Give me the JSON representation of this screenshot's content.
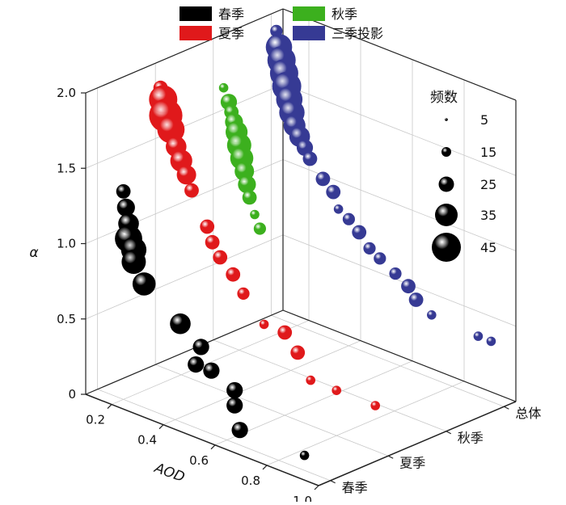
{
  "chart_data": {
    "type": "scatter",
    "y_axis": {
      "label": "α",
      "ticks": [
        "0",
        "0.5",
        "1.0",
        "1.5",
        "2.0"
      ],
      "range": [
        0,
        2.0
      ]
    },
    "x_axis": {
      "label": "AOD",
      "ticks": [
        "0.2",
        "0.4",
        "0.6",
        "0.8",
        "1.0"
      ],
      "range": [
        0.1,
        1.0
      ]
    },
    "z_axis": {
      "label": "",
      "ticks": [
        "春季",
        "夏季",
        "秋季",
        "总体"
      ]
    },
    "legend": {
      "placement": "top",
      "items": [
        {
          "label": "春季",
          "color": "#000000"
        },
        {
          "label": "夏季",
          "color": "#e0191b"
        },
        {
          "label": "秋季",
          "color": "#3cb01e"
        },
        {
          "label": "三季投影",
          "color": "#363a94"
        }
      ]
    },
    "size_legend": {
      "title": "频数",
      "values": [
        "5",
        "15",
        "25",
        "35",
        "45"
      ]
    },
    "series": [
      {
        "name": "春季",
        "color": "#000000",
        "z": 0,
        "points": [
          [
            0.2,
            1.38,
            6
          ],
          [
            0.21,
            1.28,
            10
          ],
          [
            0.22,
            1.18,
            14
          ],
          [
            0.22,
            1.08,
            26
          ],
          [
            0.24,
            1.02,
            22
          ],
          [
            0.24,
            0.94,
            20
          ],
          [
            0.28,
            0.82,
            18
          ],
          [
            0.42,
            0.65,
            14
          ],
          [
            0.5,
            0.55,
            8
          ],
          [
            0.48,
            0.42,
            8
          ],
          [
            0.54,
            0.42,
            8
          ],
          [
            0.63,
            0.35,
            8
          ],
          [
            0.63,
            0.25,
            8
          ],
          [
            0.65,
            0.1,
            8
          ],
          [
            0.9,
            0.1,
            2
          ]
        ]
      },
      {
        "name": "夏季",
        "color": "#e0191b",
        "z": 1,
        "points": [
          [
            0.12,
            1.85,
            6
          ],
          [
            0.13,
            1.78,
            28
          ],
          [
            0.14,
            1.68,
            40
          ],
          [
            0.16,
            1.6,
            26
          ],
          [
            0.18,
            1.5,
            14
          ],
          [
            0.2,
            1.42,
            16
          ],
          [
            0.22,
            1.34,
            12
          ],
          [
            0.24,
            1.25,
            6
          ],
          [
            0.3,
            1.05,
            6
          ],
          [
            0.32,
            0.96,
            6
          ],
          [
            0.35,
            0.88,
            6
          ],
          [
            0.4,
            0.8,
            6
          ],
          [
            0.44,
            0.7,
            4
          ],
          [
            0.52,
            0.55,
            2
          ],
          [
            0.6,
            0.55,
            6
          ],
          [
            0.65,
            0.45,
            6
          ],
          [
            0.7,
            0.3,
            2
          ],
          [
            0.8,
            0.3,
            2
          ],
          [
            0.95,
            0.3,
            2
          ]
        ]
      },
      {
        "name": "秋季",
        "color": "#3cb01e",
        "z": 2,
        "points": [
          [
            0.14,
            1.7,
            2
          ],
          [
            0.16,
            1.62,
            8
          ],
          [
            0.17,
            1.56,
            6
          ],
          [
            0.18,
            1.5,
            10
          ],
          [
            0.19,
            1.44,
            16
          ],
          [
            0.2,
            1.36,
            20
          ],
          [
            0.21,
            1.28,
            18
          ],
          [
            0.22,
            1.2,
            12
          ],
          [
            0.23,
            1.12,
            10
          ],
          [
            0.24,
            1.04,
            6
          ],
          [
            0.26,
            0.94,
            2
          ],
          [
            0.28,
            0.86,
            4
          ]
        ]
      },
      {
        "name": "三季投影",
        "color": "#363a94",
        "z": 3,
        "points": [
          [
            0.12,
            1.9,
            4
          ],
          [
            0.13,
            1.8,
            24
          ],
          [
            0.14,
            1.72,
            28
          ],
          [
            0.15,
            1.64,
            28
          ],
          [
            0.16,
            1.56,
            30
          ],
          [
            0.17,
            1.48,
            24
          ],
          [
            0.18,
            1.4,
            22
          ],
          [
            0.19,
            1.32,
            16
          ],
          [
            0.21,
            1.26,
            14
          ],
          [
            0.23,
            1.2,
            8
          ],
          [
            0.25,
            1.14,
            6
          ],
          [
            0.3,
            1.04,
            6
          ],
          [
            0.34,
            0.98,
            6
          ],
          [
            0.36,
            0.88,
            2
          ],
          [
            0.4,
            0.84,
            4
          ],
          [
            0.44,
            0.78,
            6
          ],
          [
            0.48,
            0.7,
            4
          ],
          [
            0.52,
            0.66,
            4
          ],
          [
            0.58,
            0.6,
            4
          ],
          [
            0.63,
            0.55,
            6
          ],
          [
            0.66,
            0.48,
            6
          ],
          [
            0.72,
            0.42,
            2
          ],
          [
            0.9,
            0.4,
            2
          ],
          [
            0.95,
            0.4,
            2
          ]
        ]
      }
    ]
  }
}
